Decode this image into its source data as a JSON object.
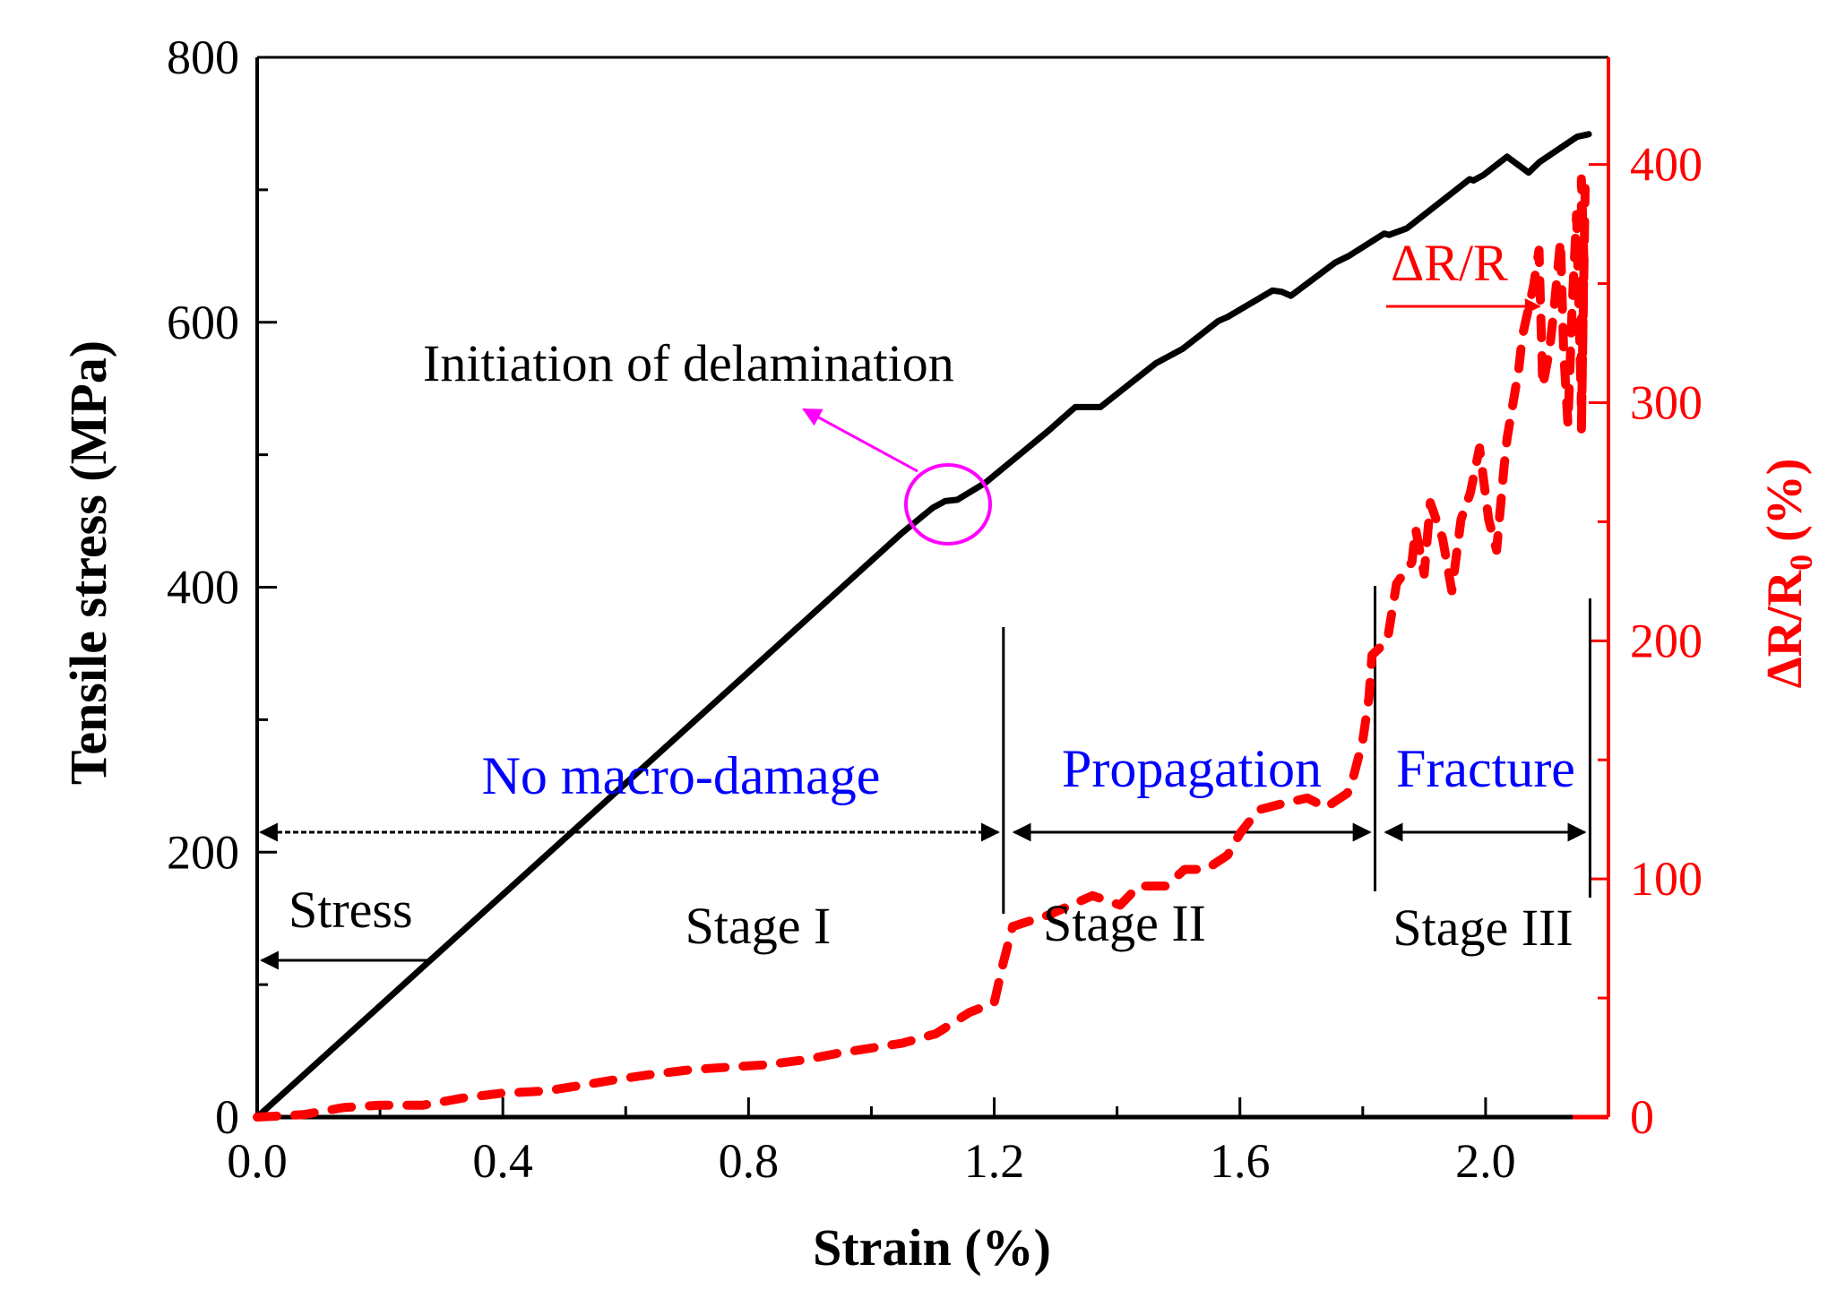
{
  "chart_data": {
    "type": "line",
    "title": "",
    "xlabel": "Strain (%)",
    "ylabel_left": "Tensile stress (MPa)",
    "ylabel_right_main": "ΔR/R",
    "ylabel_right_sub": "0",
    "ylabel_right_unit": " (%)",
    "xlim": [
      0,
      2.2
    ],
    "ylim_left": [
      0,
      800
    ],
    "ylim_right": [
      0,
      445
    ],
    "grid": false,
    "x_ticks": [
      {
        "value": 0.0,
        "label": "0.0"
      },
      {
        "value": 0.4,
        "label": "0.4"
      },
      {
        "value": 0.8,
        "label": "0.8"
      },
      {
        "value": 1.2,
        "label": "1.2"
      },
      {
        "value": 1.6,
        "label": "1.6"
      },
      {
        "value": 2.0,
        "label": "2.0"
      }
    ],
    "x_minor_ticks": [
      0.2,
      0.6,
      1.0,
      1.4,
      1.8
    ],
    "y_left_ticks": [
      {
        "value": 0,
        "label": "0"
      },
      {
        "value": 200,
        "label": "200"
      },
      {
        "value": 400,
        "label": "400"
      },
      {
        "value": 600,
        "label": "600"
      },
      {
        "value": 800,
        "label": "800"
      }
    ],
    "y_left_minor_ticks": [
      100,
      300,
      500,
      700
    ],
    "y_right_ticks": [
      {
        "value": 0,
        "label": "0"
      },
      {
        "value": 100,
        "label": "100"
      },
      {
        "value": 200,
        "label": "200"
      },
      {
        "value": 300,
        "label": "300"
      },
      {
        "value": 400,
        "label": "400"
      }
    ],
    "y_right_minor_ticks": [
      50,
      150,
      250,
      350
    ],
    "colors": {
      "stress": "#000000",
      "resistance": "#ff0000",
      "stage_label": "#0000ff",
      "annotation": "#ff00ff"
    },
    "series": [
      {
        "name": "Stress",
        "axis": "left",
        "style": "solid",
        "x": [
          0,
          0.2,
          0.4,
          0.6,
          0.8,
          1.0,
          1.05,
          1.1,
          1.12,
          1.14,
          1.186,
          1.288,
          1.332,
          1.373,
          1.463,
          1.507,
          1.565,
          1.58,
          1.653,
          1.668,
          1.683,
          1.755,
          1.777,
          1.835,
          1.843,
          1.872,
          1.974,
          1.98,
          1.996,
          2.035,
          2.07,
          2.088,
          2.149,
          2.168
        ],
        "y": [
          0,
          84,
          168,
          252,
          336,
          420,
          441,
          460,
          465,
          466,
          479,
          518,
          536,
          536,
          569,
          580,
          601,
          604,
          624,
          623,
          620,
          645,
          650,
          667,
          666,
          671,
          708,
          707,
          711,
          725,
          713,
          721,
          740,
          742
        ]
      },
      {
        "name": "ΔR/R0",
        "axis": "right",
        "style": "dashed",
        "x": [
          0,
          0.075,
          0.14,
          0.2,
          0.27,
          0.335,
          0.397,
          0.47,
          0.52,
          0.59,
          0.645,
          0.71,
          0.77,
          0.83,
          0.89,
          0.95,
          1.0,
          1.05,
          1.105,
          1.16,
          1.2,
          1.215,
          1.23,
          1.29,
          1.36,
          1.405,
          1.435,
          1.48,
          1.51,
          1.545,
          1.58,
          1.6,
          1.63,
          1.675,
          1.71,
          1.74,
          1.775,
          1.785,
          1.8,
          1.81,
          1.815,
          1.84,
          1.855,
          1.88,
          1.886,
          1.9,
          1.91,
          1.93,
          1.945,
          1.96,
          1.975,
          1.99,
          2.005,
          2.018,
          2.03,
          2.035,
          2.054,
          2.06,
          2.078,
          2.087,
          2.093,
          2.104,
          2.112,
          2.122,
          2.127,
          2.134,
          2.141,
          2.148,
          2.156,
          2.156,
          2.16,
          2.156,
          2.162
        ],
        "y": [
          0,
          1,
          4,
          5,
          5,
          8,
          10,
          11,
          13,
          16,
          18,
          20,
          21,
          22,
          24,
          27,
          29,
          31,
          35,
          44,
          48,
          65,
          80,
          85,
          93,
          89,
          97,
          97,
          104,
          104,
          110,
          119,
          129,
          132,
          134,
          130,
          136,
          143,
          158,
          176,
          194,
          200,
          224,
          233,
          247,
          228,
          258,
          243,
          221,
          251,
          262,
          281,
          251,
          238,
          273,
          285,
          314,
          328,
          349,
          364,
          307,
          322,
          341,
          368,
          322,
          291,
          341,
          379,
          299,
          394,
          360,
          288,
          390
        ]
      }
    ],
    "annotations": {
      "delamination": "Initiation of delamination",
      "stress_label": "Stress",
      "resistance_label": "ΔR/R",
      "stages": [
        {
          "name": "No macro-damage",
          "stage": "Stage I",
          "from": 0.0,
          "to": 1.215
        },
        {
          "name": "Propagation",
          "stage": "Stage II",
          "from": 1.215,
          "to": 1.82
        },
        {
          "name": "Fracture",
          "stage": "Stage III",
          "from": 1.82,
          "to": 2.17
        }
      ]
    }
  }
}
